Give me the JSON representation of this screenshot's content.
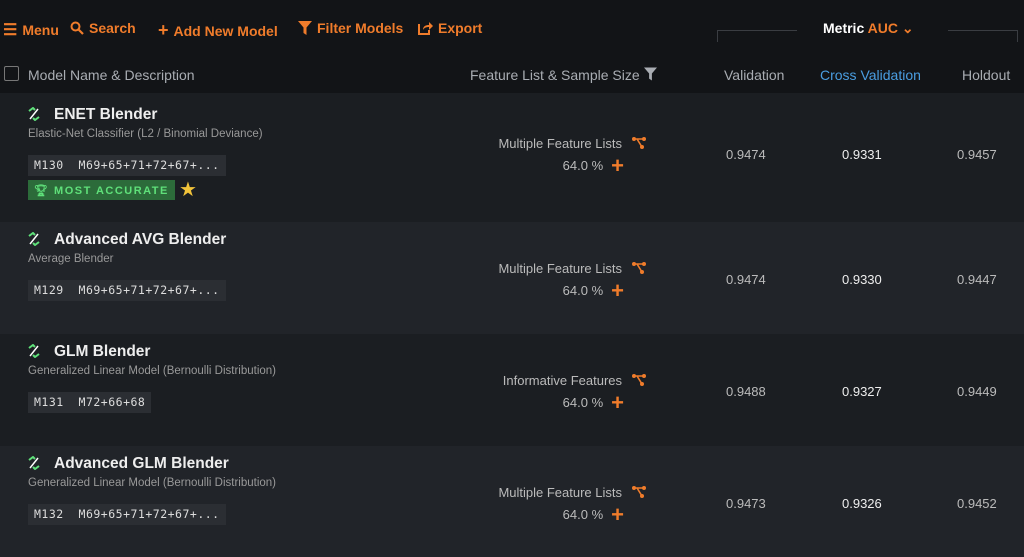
{
  "toolbar": {
    "menu": "Menu",
    "search": "Search",
    "add": "Add New Model",
    "filter": "Filter Models",
    "export": "Export"
  },
  "metric": {
    "label": "Metric",
    "value": "AUC"
  },
  "header": {
    "model": "Model Name & Description",
    "features": "Feature List & Sample Size",
    "validation": "Validation",
    "cross_validation": "Cross Validation",
    "holdout": "Holdout"
  },
  "colors": {
    "accent": "#f07c2b",
    "cv_header": "#4a9de0",
    "badge": "#2c6b3a"
  },
  "rows": [
    {
      "name": "ENET Blender",
      "desc": "Elastic-Net Classifier (L2 / Binomial Deviance)",
      "tag": "M130  M69+65+71+72+67+...",
      "badge": "MOST ACCURATE",
      "starred": true,
      "features": "Multiple Feature Lists",
      "size": "64.0 %",
      "validation": "0.9474",
      "cv": "0.9331",
      "holdout": "0.9457"
    },
    {
      "name": "Advanced AVG Blender",
      "desc": "Average Blender",
      "tag": "M129  M69+65+71+72+67+...",
      "features": "Multiple Feature Lists",
      "size": "64.0 %",
      "validation": "0.9474",
      "cv": "0.9330",
      "holdout": "0.9447"
    },
    {
      "name": "GLM Blender",
      "desc": "Generalized Linear Model (Bernoulli Distribution)",
      "tag": "M131  M72+66+68",
      "features": "Informative Features",
      "size": "64.0 %",
      "validation": "0.9488",
      "cv": "0.9327",
      "holdout": "0.9449"
    },
    {
      "name": "Advanced GLM Blender",
      "desc": "Generalized Linear Model (Bernoulli Distribution)",
      "tag": "M132  M69+65+71+72+67+...",
      "features": "Multiple Feature Lists",
      "size": "64.0 %",
      "validation": "0.9473",
      "cv": "0.9326",
      "holdout": "0.9452"
    }
  ]
}
